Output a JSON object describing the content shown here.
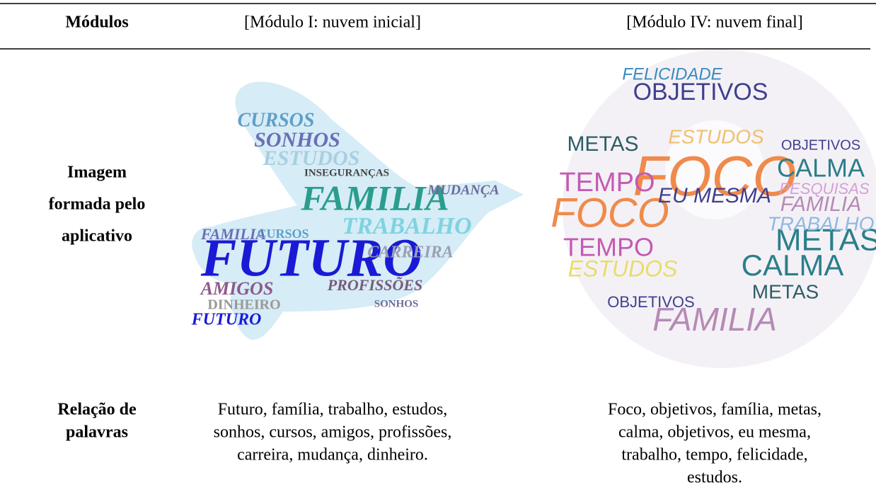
{
  "table": {
    "header": [
      "Módulos",
      "[Módulo I: nuvem inicial]",
      "[Módulo IV: nuvem final]"
    ],
    "rows": [
      {
        "label": [
          "Imagem",
          "formada pelo",
          "aplicativo"
        ],
        "cells": [
          {
            "words": [
              {
                "text": "FUTURO",
                "color": "#1a1ad6"
              },
              {
                "text": "FAMILIA",
                "color": "#2a9d8f"
              },
              {
                "text": "TRABALHO",
                "color": "#7fd3e0"
              },
              {
                "text": "SONHOS",
                "color": "#6a6fb5"
              },
              {
                "text": "CURSOS",
                "color": "#5f9fc8"
              },
              {
                "text": "ESTUDOS",
                "color": "#a8cfe0"
              },
              {
                "text": "AMIGOS",
                "color": "#8b5a8c"
              },
              {
                "text": "PROFISSÕES",
                "color": "#7a5a7a"
              },
              {
                "text": "CARREIRA",
                "color": "#9aa0b5"
              },
              {
                "text": "MUDANÇA",
                "color": "#6a6a9a"
              },
              {
                "text": "INSEGURANÇAS",
                "color": "#444444"
              },
              {
                "text": "DINHEIRO",
                "color": "#999999"
              },
              {
                "text": "FUTURO",
                "color": "#1a1ad6"
              },
              {
                "text": "FAMILIA",
                "color": "#6a6fb5"
              },
              {
                "text": "CURSOS",
                "color": "#5f9fc8"
              },
              {
                "text": "SONHOS",
                "color": "#6a6a9a"
              }
            ]
          },
          {
            "words": [
              {
                "text": "FOCO",
                "color": "#f08a4b"
              },
              {
                "text": "FOCO",
                "color": "#f08a4b"
              },
              {
                "text": "OBJETIVOS",
                "color": "#3f3f8f"
              },
              {
                "text": "FELICIDADE",
                "color": "#3a8ac0"
              },
              {
                "text": "TEMPO",
                "color": "#c45ab3"
              },
              {
                "text": "TEMPO",
                "color": "#c45ab3"
              },
              {
                "text": "METAS",
                "color": "#2e5e66"
              },
              {
                "text": "CALMA",
                "color": "#2a7f8a"
              },
              {
                "text": "CALMA",
                "color": "#2a7f8a"
              },
              {
                "text": "METAS",
                "color": "#2a7f8a"
              },
              {
                "text": "FAMILIA",
                "color": "#b58ab5"
              },
              {
                "text": "EU MESMA",
                "color": "#3f3f8f"
              },
              {
                "text": "ESTUDOS",
                "color": "#e8dd6a"
              },
              {
                "text": "OBJETIVOS",
                "color": "#3f3f8f"
              },
              {
                "text": "METAS",
                "color": "#2e5e66"
              },
              {
                "text": "TRABALHO",
                "color": "#8fb8e0"
              },
              {
                "text": "PESQUISAS",
                "color": "#d5a0d5"
              },
              {
                "text": "ESTUDOS",
                "color": "#f0c070"
              },
              {
                "text": "FAMILIA",
                "color": "#b58ab5"
              },
              {
                "text": "OBJETIVOS",
                "color": "#3f3f8f"
              }
            ]
          }
        ]
      },
      {
        "label": [
          "Relação de",
          "palavras"
        ],
        "cells": [
          [
            "Futuro, família, trabalho, estudos,",
            "sonhos, cursos, amigos, profissões,",
            "carreira, mudança, dinheiro."
          ],
          [
            "Foco, objetivos, família, metas,",
            "calma, objetivos, eu mesma,",
            "trabalho, tempo, felicidade,",
            "estudos."
          ]
        ]
      }
    ]
  }
}
